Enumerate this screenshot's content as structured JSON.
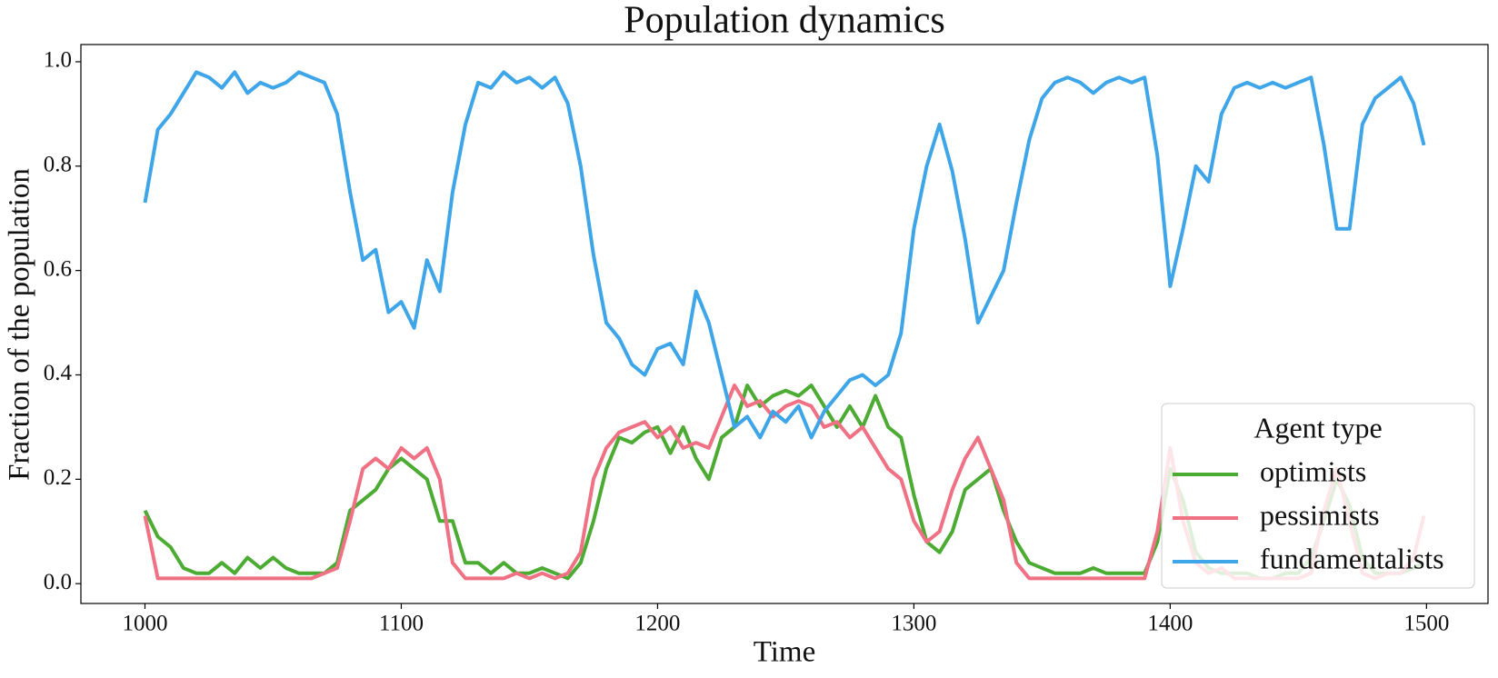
{
  "chart_data": {
    "type": "line",
    "title": "Population dynamics",
    "x_label": "Time",
    "y_label": "Fraction of the population",
    "x": [
      1000,
      1005,
      1010,
      1015,
      1020,
      1025,
      1030,
      1035,
      1040,
      1045,
      1050,
      1055,
      1060,
      1065,
      1070,
      1075,
      1080,
      1085,
      1090,
      1095,
      1100,
      1105,
      1110,
      1115,
      1120,
      1125,
      1130,
      1135,
      1140,
      1145,
      1150,
      1155,
      1160,
      1165,
      1170,
      1175,
      1180,
      1185,
      1190,
      1195,
      1200,
      1205,
      1210,
      1215,
      1220,
      1225,
      1230,
      1235,
      1240,
      1245,
      1250,
      1255,
      1260,
      1265,
      1270,
      1275,
      1280,
      1285,
      1290,
      1295,
      1300,
      1305,
      1310,
      1315,
      1320,
      1325,
      1330,
      1335,
      1340,
      1345,
      1350,
      1355,
      1360,
      1365,
      1370,
      1375,
      1380,
      1385,
      1390,
      1395,
      1400,
      1405,
      1410,
      1415,
      1420,
      1425,
      1430,
      1435,
      1440,
      1445,
      1450,
      1455,
      1460,
      1465,
      1470,
      1475,
      1480,
      1485,
      1490,
      1495,
      1499
    ],
    "series": [
      {
        "name": " optimists",
        "color": "#4cab32",
        "values": [
          0.14,
          0.09,
          0.07,
          0.03,
          0.02,
          0.02,
          0.04,
          0.02,
          0.05,
          0.03,
          0.05,
          0.03,
          0.02,
          0.02,
          0.02,
          0.04,
          0.14,
          0.16,
          0.18,
          0.22,
          0.24,
          0.22,
          0.2,
          0.12,
          0.12,
          0.04,
          0.04,
          0.02,
          0.04,
          0.02,
          0.02,
          0.03,
          0.02,
          0.01,
          0.04,
          0.12,
          0.22,
          0.28,
          0.27,
          0.29,
          0.3,
          0.25,
          0.3,
          0.24,
          0.2,
          0.28,
          0.3,
          0.38,
          0.34,
          0.36,
          0.37,
          0.36,
          0.38,
          0.34,
          0.3,
          0.34,
          0.3,
          0.36,
          0.3,
          0.28,
          0.17,
          0.08,
          0.06,
          0.1,
          0.18,
          0.2,
          0.22,
          0.14,
          0.08,
          0.04,
          0.03,
          0.02,
          0.02,
          0.02,
          0.03,
          0.02,
          0.02,
          0.02,
          0.02,
          0.08,
          0.22,
          0.16,
          0.06,
          0.03,
          0.02,
          0.02,
          0.02,
          0.01,
          0.01,
          0.02,
          0.02,
          0.05,
          0.12,
          0.2,
          0.15,
          0.05,
          0.02,
          0.02,
          0.02,
          0.03,
          0.04
        ]
      },
      {
        "name": " pessimists",
        "color": "#f07084",
        "values": [
          0.13,
          0.01,
          0.01,
          0.01,
          0.01,
          0.01,
          0.01,
          0.01,
          0.01,
          0.01,
          0.01,
          0.01,
          0.01,
          0.01,
          0.02,
          0.03,
          0.12,
          0.22,
          0.24,
          0.22,
          0.26,
          0.24,
          0.26,
          0.2,
          0.04,
          0.01,
          0.01,
          0.01,
          0.01,
          0.02,
          0.01,
          0.02,
          0.01,
          0.02,
          0.06,
          0.2,
          0.26,
          0.29,
          0.3,
          0.31,
          0.28,
          0.3,
          0.26,
          0.27,
          0.26,
          0.32,
          0.38,
          0.34,
          0.35,
          0.32,
          0.34,
          0.35,
          0.34,
          0.3,
          0.31,
          0.28,
          0.3,
          0.26,
          0.22,
          0.2,
          0.12,
          0.08,
          0.1,
          0.18,
          0.24,
          0.28,
          0.22,
          0.16,
          0.04,
          0.01,
          0.01,
          0.01,
          0.01,
          0.01,
          0.01,
          0.01,
          0.01,
          0.01,
          0.01,
          0.1,
          0.26,
          0.12,
          0.04,
          0.02,
          0.03,
          0.01,
          0.01,
          0.01,
          0.01,
          0.01,
          0.01,
          0.02,
          0.14,
          0.22,
          0.12,
          0.02,
          0.01,
          0.02,
          0.02,
          0.05,
          0.13
        ]
      },
      {
        "name": " fundamentalists",
        "color": "#3ea6e8",
        "values": [
          0.73,
          0.87,
          0.9,
          0.94,
          0.98,
          0.97,
          0.95,
          0.98,
          0.94,
          0.96,
          0.95,
          0.96,
          0.98,
          0.97,
          0.96,
          0.9,
          0.75,
          0.62,
          0.64,
          0.52,
          0.54,
          0.49,
          0.62,
          0.56,
          0.75,
          0.88,
          0.96,
          0.95,
          0.98,
          0.96,
          0.97,
          0.95,
          0.97,
          0.92,
          0.8,
          0.63,
          0.5,
          0.47,
          0.42,
          0.4,
          0.45,
          0.46,
          0.42,
          0.56,
          0.5,
          0.4,
          0.3,
          0.32,
          0.28,
          0.33,
          0.31,
          0.34,
          0.28,
          0.33,
          0.36,
          0.39,
          0.4,
          0.38,
          0.4,
          0.48,
          0.68,
          0.8,
          0.88,
          0.79,
          0.66,
          0.5,
          0.55,
          0.6,
          0.73,
          0.85,
          0.93,
          0.96,
          0.97,
          0.96,
          0.94,
          0.96,
          0.97,
          0.96,
          0.97,
          0.82,
          0.57,
          0.68,
          0.8,
          0.77,
          0.9,
          0.95,
          0.96,
          0.95,
          0.96,
          0.95,
          0.96,
          0.97,
          0.84,
          0.68,
          0.68,
          0.88,
          0.93,
          0.95,
          0.97,
          0.92,
          0.84
        ]
      }
    ],
    "xlim": [
      975,
      1524
    ],
    "ylim": [
      -0.038,
      1.033
    ],
    "xticks": [
      1000,
      1100,
      1200,
      1300,
      1400,
      1500
    ],
    "yticks": [
      {
        "value": 0,
        "label": "0.0"
      },
      0.2,
      0.4,
      0.6,
      0.8,
      {
        "value": 1,
        "label": "1.0"
      }
    ],
    "grid": false,
    "legend": "lower right",
    "legend_title": "Agent type"
  }
}
